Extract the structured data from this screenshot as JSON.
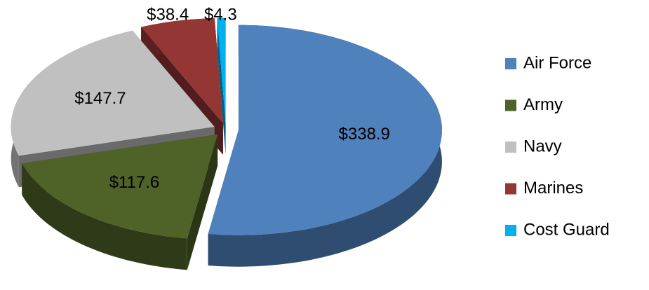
{
  "chart_data": {
    "type": "pie3d",
    "categories": [
      "Air Force",
      "Army",
      "Navy",
      "Marines",
      "Cost Guard"
    ],
    "values": [
      338.9,
      117.6,
      147.7,
      38.4,
      4.3
    ],
    "value_labels": [
      "$338.9",
      "$117.6",
      "$147.7",
      "$38.4",
      "$4.3"
    ],
    "colors": [
      "#4f81bd",
      "#4f6228",
      "#c0c0c0",
      "#943634",
      "#00b0f0"
    ],
    "legend": "right"
  }
}
